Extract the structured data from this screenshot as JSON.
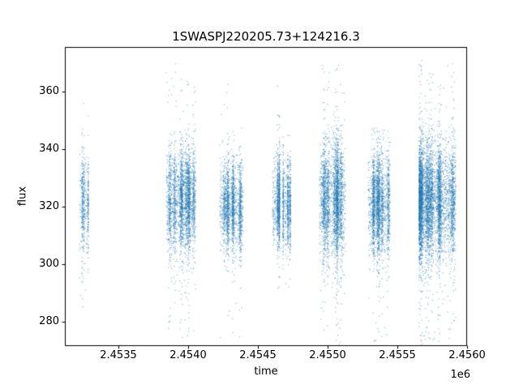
{
  "figure": {
    "background": "#ffffff",
    "frame_color": "#000000"
  },
  "chart_data": {
    "type": "scatter",
    "title": "1SWASPJ220205.73+124216.3",
    "xlabel": "time",
    "ylabel": "flux",
    "x_offset_text": "1e6",
    "xlim": [
      2453116,
      2456000
    ],
    "ylim": [
      271.5,
      375.5
    ],
    "x_ticks": [
      2453500,
      2454000,
      2454500,
      2455000,
      2455500,
      2456000
    ],
    "x_tick_labels": [
      "2.4535",
      "2.4540",
      "2.4545",
      "2.4550",
      "2.4555",
      "2.4560"
    ],
    "y_ticks": [
      280,
      300,
      320,
      340,
      360
    ],
    "y_tick_labels": [
      "280",
      "300",
      "320",
      "340",
      "360"
    ],
    "grid": false,
    "legend": false,
    "marker_color": "#1f77b4",
    "marker_alpha": 0.5,
    "description": "SuperWASP light curve: flux vs time (HJD), seven observing-season clusters of points centered near flux 320",
    "clusters": [
      {
        "t_min": 2453221,
        "t_max": 2453285,
        "n": 550,
        "flux_mean": 321,
        "flux_sd": 9,
        "tail_lo": 283,
        "tail_hi": 357,
        "tail_frac": 0.02,
        "stripes": 3
      },
      {
        "t_min": 2453843,
        "t_max": 2454055,
        "n": 2800,
        "flux_mean": 322,
        "flux_sd": 9,
        "tail_lo": 272,
        "tail_hi": 370,
        "tail_frac": 0.04,
        "stripes": 8
      },
      {
        "t_min": 2454227,
        "t_max": 2454395,
        "n": 1900,
        "flux_mean": 320,
        "flux_sd": 8,
        "tail_lo": 273,
        "tail_hi": 368,
        "tail_frac": 0.025,
        "stripes": 7
      },
      {
        "t_min": 2454605,
        "t_max": 2454663,
        "n": 900,
        "flux_mean": 322,
        "flux_sd": 8,
        "tail_lo": 290,
        "tail_hi": 370,
        "tail_frac": 0.025,
        "stripes": 3
      },
      {
        "t_min": 2454680,
        "t_max": 2454738,
        "n": 800,
        "flux_mean": 320,
        "flux_sd": 8,
        "tail_lo": 284,
        "tail_hi": 356,
        "tail_frac": 0.02,
        "stripes": 3
      },
      {
        "t_min": 2454942,
        "t_max": 2455128,
        "n": 2800,
        "flux_mean": 322,
        "flux_sd": 10,
        "tail_lo": 272,
        "tail_hi": 370,
        "tail_frac": 0.05,
        "stripes": 8
      },
      {
        "t_min": 2455291,
        "t_max": 2455448,
        "n": 2200,
        "flux_mean": 321,
        "flux_sd": 9,
        "tail_lo": 273,
        "tail_hi": 348,
        "tail_frac": 0.03,
        "stripes": 7
      },
      {
        "t_min": 2455657,
        "t_max": 2455919,
        "n": 5200,
        "flux_mean": 322,
        "flux_sd": 10,
        "tail_lo": 271,
        "tail_hi": 371,
        "tail_frac": 0.05,
        "stripes": 10
      }
    ]
  }
}
